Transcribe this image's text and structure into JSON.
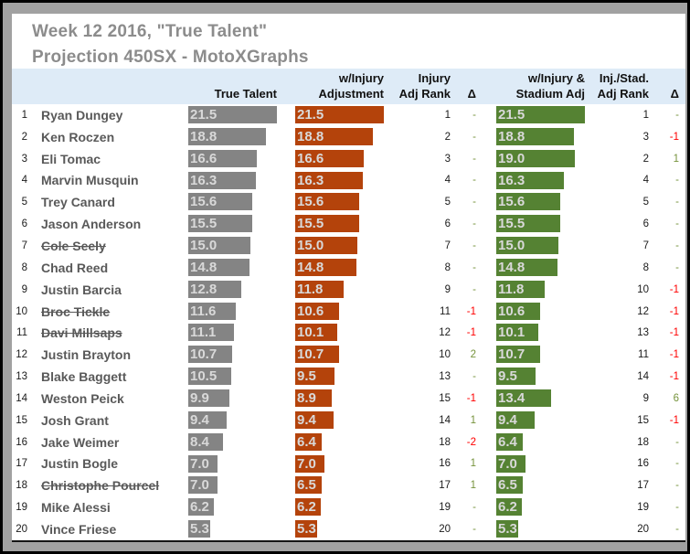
{
  "title": {
    "line1": "Week 12 2016, \"True Talent\"",
    "line2": "Projection 450SX - MotoXGraphs"
  },
  "headers": {
    "true_talent": "True Talent",
    "injury_l1": "w/Injury",
    "injury_l2": "Adjustment",
    "injury_rank_l1": "Injury",
    "injury_rank_l2": "Adj Rank",
    "delta1": "Δ",
    "stadium_l1": "w/Injury &",
    "stadium_l2": "Stadium Adj",
    "stadium_rank_l1": "Inj./Stad.",
    "stadium_rank_l2": "Adj Rank",
    "delta2": "Δ"
  },
  "colors": {
    "gray_bar": "#848484",
    "orange_bar": "#B4430B",
    "green_bar": "#558233",
    "header_bg": "#DEEBF7",
    "positive_delta": "#76933C",
    "negative_delta": "#FF0000",
    "title_text": "#8C8C8C",
    "name_text": "#595959",
    "bar_value_text": "#D9D9D9"
  },
  "chart_data": {
    "type": "bar",
    "title": "Week 12 2016, \"True Talent\" Projection 450SX - MotoXGraphs",
    "bar_series_names": [
      "True Talent",
      "w/Injury Adjustment",
      "w/Injury & Stadium Adj"
    ],
    "scale_max": 21.5,
    "rows": [
      {
        "rank": "1",
        "name": "Ryan Dungey",
        "struck": false,
        "true_talent": "21.5",
        "injury_adj": "21.5",
        "injury_rank": "1",
        "injury_delta": "-",
        "stadium_adj": "21.5",
        "stadium_rank": "1",
        "stadium_delta": "-"
      },
      {
        "rank": "2",
        "name": "Ken Roczen",
        "struck": false,
        "true_talent": "18.8",
        "injury_adj": "18.8",
        "injury_rank": "2",
        "injury_delta": "-",
        "stadium_adj": "18.8",
        "stadium_rank": "3",
        "stadium_delta": "-1"
      },
      {
        "rank": "3",
        "name": "Eli Tomac",
        "struck": false,
        "true_talent": "16.6",
        "injury_adj": "16.6",
        "injury_rank": "3",
        "injury_delta": "-",
        "stadium_adj": "19.0",
        "stadium_rank": "2",
        "stadium_delta": "1"
      },
      {
        "rank": "4",
        "name": "Marvin Musquin",
        "struck": false,
        "true_talent": "16.3",
        "injury_adj": "16.3",
        "injury_rank": "4",
        "injury_delta": "-",
        "stadium_adj": "16.3",
        "stadium_rank": "4",
        "stadium_delta": "-"
      },
      {
        "rank": "5",
        "name": "Trey Canard",
        "struck": false,
        "true_talent": "15.6",
        "injury_adj": "15.6",
        "injury_rank": "5",
        "injury_delta": "-",
        "stadium_adj": "15.6",
        "stadium_rank": "5",
        "stadium_delta": "-"
      },
      {
        "rank": "6",
        "name": "Jason Anderson",
        "struck": false,
        "true_talent": "15.5",
        "injury_adj": "15.5",
        "injury_rank": "6",
        "injury_delta": "-",
        "stadium_adj": "15.5",
        "stadium_rank": "6",
        "stadium_delta": "-"
      },
      {
        "rank": "7",
        "name": "Cole Seely",
        "struck": true,
        "true_talent": "15.0",
        "injury_adj": "15.0",
        "injury_rank": "7",
        "injury_delta": "-",
        "stadium_adj": "15.0",
        "stadium_rank": "7",
        "stadium_delta": "-"
      },
      {
        "rank": "8",
        "name": "Chad Reed",
        "struck": false,
        "true_talent": "14.8",
        "injury_adj": "14.8",
        "injury_rank": "8",
        "injury_delta": "-",
        "stadium_adj": "14.8",
        "stadium_rank": "8",
        "stadium_delta": "-"
      },
      {
        "rank": "9",
        "name": "Justin Barcia",
        "struck": false,
        "true_talent": "12.8",
        "injury_adj": "11.8",
        "injury_rank": "9",
        "injury_delta": "-",
        "stadium_adj": "11.8",
        "stadium_rank": "10",
        "stadium_delta": "-1"
      },
      {
        "rank": "10",
        "name": "Broc Tickle",
        "struck": true,
        "true_talent": "11.6",
        "injury_adj": "10.6",
        "injury_rank": "11",
        "injury_delta": "-1",
        "stadium_adj": "10.6",
        "stadium_rank": "12",
        "stadium_delta": "-1"
      },
      {
        "rank": "11",
        "name": "Davi Millsaps",
        "struck": true,
        "true_talent": "11.1",
        "injury_adj": "10.1",
        "injury_rank": "12",
        "injury_delta": "-1",
        "stadium_adj": "10.1",
        "stadium_rank": "13",
        "stadium_delta": "-1"
      },
      {
        "rank": "12",
        "name": "Justin Brayton",
        "struck": false,
        "true_talent": "10.7",
        "injury_adj": "10.7",
        "injury_rank": "10",
        "injury_delta": "2",
        "stadium_adj": "10.7",
        "stadium_rank": "11",
        "stadium_delta": "-1"
      },
      {
        "rank": "13",
        "name": "Blake Baggett",
        "struck": false,
        "true_talent": "10.5",
        "injury_adj": "9.5",
        "injury_rank": "13",
        "injury_delta": "-",
        "stadium_adj": "9.5",
        "stadium_rank": "14",
        "stadium_delta": "-1"
      },
      {
        "rank": "14",
        "name": "Weston Peick",
        "struck": false,
        "true_talent": "9.9",
        "injury_adj": "8.9",
        "injury_rank": "15",
        "injury_delta": "-1",
        "stadium_adj": "13.4",
        "stadium_rank": "9",
        "stadium_delta": "6"
      },
      {
        "rank": "15",
        "name": "Josh Grant",
        "struck": false,
        "true_talent": "9.4",
        "injury_adj": "9.4",
        "injury_rank": "14",
        "injury_delta": "1",
        "stadium_adj": "9.4",
        "stadium_rank": "15",
        "stadium_delta": "-1"
      },
      {
        "rank": "16",
        "name": "Jake Weimer",
        "struck": false,
        "true_talent": "8.4",
        "injury_adj": "6.4",
        "injury_rank": "18",
        "injury_delta": "-2",
        "stadium_adj": "6.4",
        "stadium_rank": "18",
        "stadium_delta": "-"
      },
      {
        "rank": "17",
        "name": "Justin Bogle",
        "struck": false,
        "true_talent": "7.0",
        "injury_adj": "7.0",
        "injury_rank": "16",
        "injury_delta": "1",
        "stadium_adj": "7.0",
        "stadium_rank": "16",
        "stadium_delta": "-"
      },
      {
        "rank": "18",
        "name": "Christophe Pourcel",
        "struck": true,
        "true_talent": "7.0",
        "injury_adj": "6.5",
        "injury_rank": "17",
        "injury_delta": "1",
        "stadium_adj": "6.5",
        "stadium_rank": "17",
        "stadium_delta": "-"
      },
      {
        "rank": "19",
        "name": "Mike Alessi",
        "struck": false,
        "true_talent": "6.2",
        "injury_adj": "6.2",
        "injury_rank": "19",
        "injury_delta": "-",
        "stadium_adj": "6.2",
        "stadium_rank": "19",
        "stadium_delta": "-"
      },
      {
        "rank": "20",
        "name": "Vince Friese",
        "struck": false,
        "true_talent": "5.3",
        "injury_adj": "5.3",
        "injury_rank": "20",
        "injury_delta": "-",
        "stadium_adj": "5.3",
        "stadium_rank": "20",
        "stadium_delta": "-"
      }
    ]
  }
}
